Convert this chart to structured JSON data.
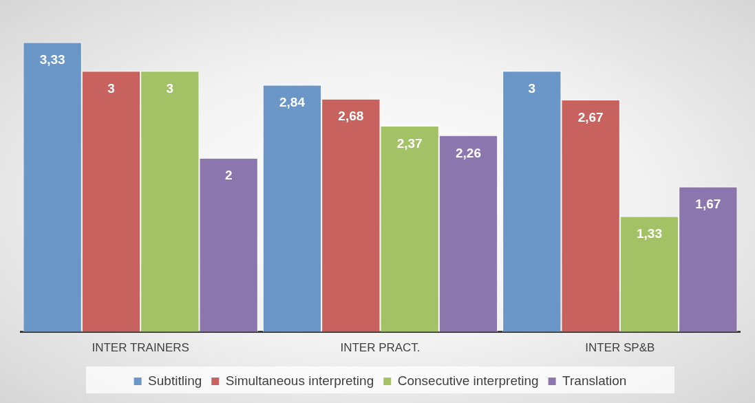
{
  "chart_data": {
    "type": "bar",
    "categories": [
      "INTER TRAINERS",
      "INTER PRACT.",
      "INTER SP&B"
    ],
    "series": [
      {
        "name": "Subtitling",
        "color": "#6a96c8",
        "values": [
          3.33,
          2.84,
          3
        ],
        "value_labels": [
          "3,33",
          "2,84",
          "3"
        ]
      },
      {
        "name": "Simultaneous interpreting",
        "color": "#c8625e",
        "values": [
          3,
          2.68,
          2.67
        ],
        "value_labels": [
          "3",
          "2,68",
          "2,67"
        ]
      },
      {
        "name": "Consecutive interpreting",
        "color": "#a3c165",
        "values": [
          3,
          2.37,
          1.33
        ],
        "value_labels": [
          "3",
          "2,37",
          "1,33"
        ]
      },
      {
        "name": "Translation",
        "color": "#8b76ad",
        "values": [
          2,
          2.26,
          1.67
        ],
        "value_labels": [
          "2",
          "2,26",
          "1,67"
        ]
      }
    ],
    "grid": false,
    "legend": "bottom",
    "tick_labels": "x"
  }
}
